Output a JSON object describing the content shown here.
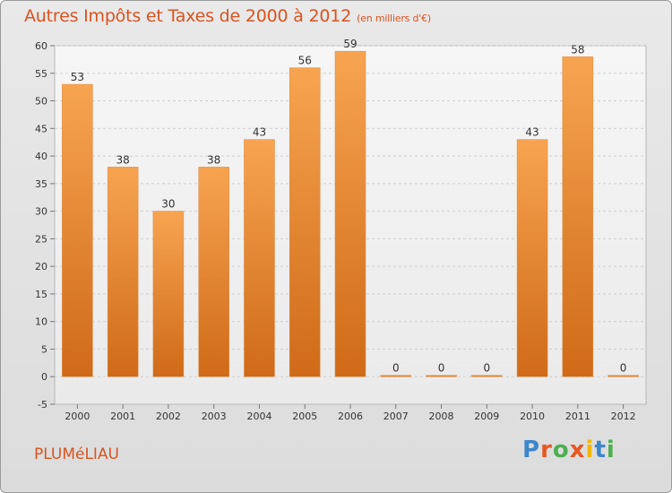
{
  "header": {
    "title": "Autres Impôts et Taxes de 2000 à 2012",
    "subtitle": "(en milliers d'€)"
  },
  "footer": {
    "place": "PLUMéLIAU",
    "logo": [
      "P",
      "r",
      "o",
      "x",
      "i",
      "t",
      "i"
    ],
    "logo_colors": [
      "#3b87c9",
      "#e8571f",
      "#4caf50",
      "#e8571f",
      "#f2b705",
      "#3b87c9",
      "#4caf50"
    ]
  },
  "chart_data": {
    "type": "bar",
    "title": "Autres Impôts et Taxes de 2000 à 2012",
    "subtitle": "(en milliers d'€)",
    "categories": [
      "2000",
      "2001",
      "2002",
      "2003",
      "2004",
      "2005",
      "2006",
      "2007",
      "2008",
      "2009",
      "2010",
      "2011",
      "2012"
    ],
    "values": [
      53,
      38,
      30,
      38,
      43,
      56,
      59,
      0,
      0,
      0,
      43,
      58,
      0
    ],
    "ylim": [
      -5,
      60
    ],
    "yticks": [
      -5,
      0,
      5,
      10,
      15,
      20,
      25,
      30,
      35,
      40,
      45,
      50,
      55,
      60
    ],
    "grid": true,
    "bar_color_top": "#f7a451",
    "bar_color_bottom": "#cf6a18",
    "xlabel": "",
    "ylabel": ""
  }
}
